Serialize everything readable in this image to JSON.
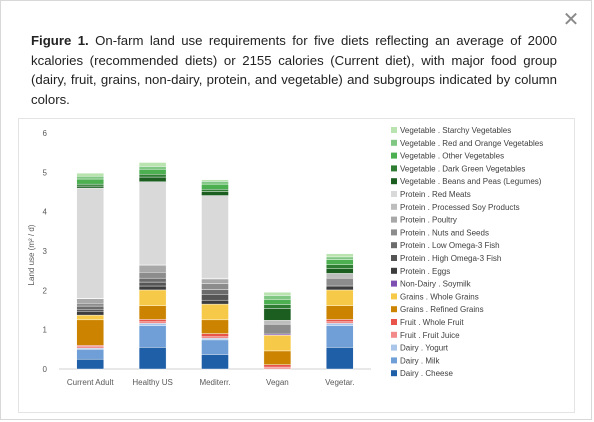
{
  "dialog": {
    "close_label": "✕",
    "caption_lead": "Figure 1.",
    "caption_text": " On-farm land use requirements for five diets reflecting an average of 2000 kcalories (recommended diets) or 2155 calories (Current diet), with major food group (dairy, fruit, grains, non-dairy, protein, and vegetable) and subgroups indicated by column colors."
  },
  "chart_data": {
    "type": "bar",
    "stacked": true,
    "title": "",
    "xlabel": "",
    "ylabel": "Land use (m² / d)",
    "ylim": [
      0,
      6
    ],
    "yticks": [
      "0",
      "1",
      "2",
      "3",
      "4",
      "5",
      "6"
    ],
    "grid": false,
    "legend_position": "right",
    "categories": [
      "Current Adult",
      "Healthy US",
      "Mediterr.",
      "Vegan",
      "Vegetar."
    ],
    "series": [
      {
        "name": "Dairy . Cheese",
        "color": "#1f5fa8",
        "values": [
          0.25,
          0.55,
          0.37,
          0.0,
          0.55
        ]
      },
      {
        "name": "Dairy . Milk",
        "color": "#6f9fd6",
        "values": [
          0.25,
          0.55,
          0.37,
          0.0,
          0.55
        ]
      },
      {
        "name": "Dairy . Yogurt",
        "color": "#a9c6ea",
        "values": [
          0.03,
          0.06,
          0.04,
          0.0,
          0.06
        ]
      },
      {
        "name": "Fruit . Fruit Juice",
        "color": "#f28a8a",
        "values": [
          0.04,
          0.04,
          0.04,
          0.05,
          0.04
        ]
      },
      {
        "name": "Fruit . Whole Fruit",
        "color": "#e8534a",
        "values": [
          0.03,
          0.06,
          0.08,
          0.06,
          0.06
        ]
      },
      {
        "name": "Grains . Refined Grains",
        "color": "#cc8400",
        "values": [
          0.65,
          0.35,
          0.35,
          0.35,
          0.35
        ]
      },
      {
        "name": "Grains . Whole Grains",
        "color": "#f7c948",
        "values": [
          0.12,
          0.4,
          0.4,
          0.4,
          0.4
        ]
      },
      {
        "name": "Non-Dairy . Soymilk",
        "color": "#7c4fb0",
        "values": [
          0.0,
          0.0,
          0.0,
          0.03,
          0.0
        ]
      },
      {
        "name": "Protein . Eggs",
        "color": "#3d3d3d",
        "values": [
          0.1,
          0.1,
          0.1,
          0.0,
          0.1
        ]
      },
      {
        "name": "Protein . High Omega-3 Fish",
        "color": "#555555",
        "values": [
          0.05,
          0.1,
          0.15,
          0.0,
          0.0
        ]
      },
      {
        "name": "Protein . Low Omega-3 Fish",
        "color": "#6b6b6b",
        "values": [
          0.08,
          0.1,
          0.12,
          0.0,
          0.0
        ]
      },
      {
        "name": "Protein . Nuts and Seeds",
        "color": "#8c8c8c",
        "values": [
          0.07,
          0.15,
          0.15,
          0.25,
          0.2
        ]
      },
      {
        "name": "Protein . Poultry",
        "color": "#a8a8a8",
        "values": [
          0.12,
          0.18,
          0.12,
          0.0,
          0.0
        ]
      },
      {
        "name": "Protein . Processed Soy Products",
        "color": "#bdbdbd",
        "values": [
          0.01,
          0.02,
          0.02,
          0.1,
          0.12
        ]
      },
      {
        "name": "Protein . Red Meats",
        "color": "#d9d9d9",
        "values": [
          2.8,
          2.1,
          2.1,
          0.0,
          0.0
        ]
      },
      {
        "name": "Vegetable . Beans and Peas (Legumes)",
        "color": "#1b5e20",
        "values": [
          0.05,
          0.12,
          0.1,
          0.3,
          0.12
        ]
      },
      {
        "name": "Vegetable . Dark Green Vegetables",
        "color": "#2e7d32",
        "values": [
          0.05,
          0.07,
          0.06,
          0.1,
          0.1
        ]
      },
      {
        "name": "Vegetable . Other Vegetables",
        "color": "#4caf50",
        "values": [
          0.13,
          0.13,
          0.13,
          0.13,
          0.13
        ]
      },
      {
        "name": "Vegetable . Red and Orange Vegetables",
        "color": "#81c784",
        "values": [
          0.07,
          0.07,
          0.07,
          0.1,
          0.07
        ]
      },
      {
        "name": "Vegetable . Starchy Vegetables",
        "color": "#b9e4b0",
        "values": [
          0.08,
          0.1,
          0.04,
          0.08,
          0.08
        ]
      }
    ]
  }
}
